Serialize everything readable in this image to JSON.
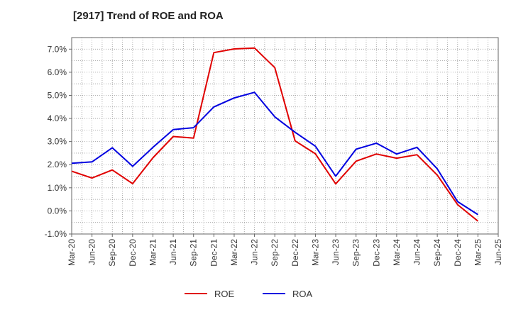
{
  "chart_data": {
    "type": "line",
    "title": "[2917]  Trend of ROE and ROA",
    "xlabel": "",
    "ylabel": "",
    "categories": [
      "Mar-20",
      "Jun-20",
      "Sep-20",
      "Dec-20",
      "Mar-21",
      "Jun-21",
      "Sep-21",
      "Dec-21",
      "Mar-22",
      "Jun-22",
      "Sep-22",
      "Dec-22",
      "Mar-23",
      "Jun-23",
      "Sep-23",
      "Dec-23",
      "Mar-24",
      "Jun-24",
      "Sep-24",
      "Dec-24",
      "Mar-25",
      "Jun-25"
    ],
    "ylim": [
      -1.0,
      7.5
    ],
    "yticks": [
      -1.0,
      0.0,
      1.0,
      2.0,
      3.0,
      4.0,
      5.0,
      6.0,
      7.0
    ],
    "ytick_labels": [
      "-1.0%",
      "0.0%",
      "1.0%",
      "2.0%",
      "3.0%",
      "4.0%",
      "5.0%",
      "6.0%",
      "7.0%"
    ],
    "grid": true,
    "legend_position": "bottom-center",
    "series": [
      {
        "name": "ROE",
        "color": "#e00000",
        "values": [
          1.72,
          1.42,
          1.77,
          1.18,
          2.3,
          3.22,
          3.15,
          6.85,
          7.01,
          7.05,
          6.2,
          3.03,
          2.47,
          1.17,
          2.15,
          2.46,
          2.28,
          2.43,
          1.55,
          0.27,
          -0.44,
          null
        ]
      },
      {
        "name": "ROA",
        "color": "#0000e0",
        "values": [
          2.06,
          2.12,
          2.73,
          1.93,
          2.75,
          3.52,
          3.6,
          4.5,
          4.89,
          5.13,
          4.07,
          3.4,
          2.8,
          1.5,
          2.67,
          2.93,
          2.46,
          2.75,
          1.82,
          0.4,
          -0.16,
          null
        ]
      }
    ]
  }
}
